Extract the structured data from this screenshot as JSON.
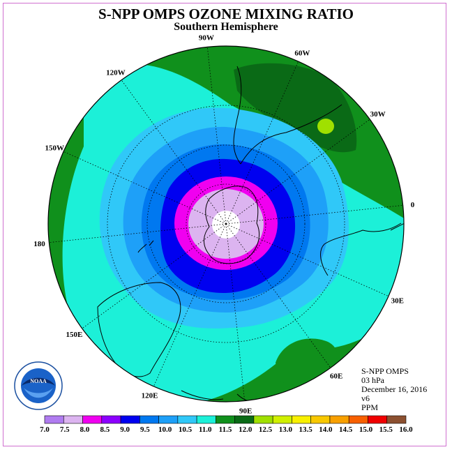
{
  "header": {
    "title": "S-NPP OMPS OZONE MIXING RATIO",
    "subtitle": "Southern Hemisphere"
  },
  "info": {
    "product": "S-NPP OMPS",
    "pressure": "03 hPa",
    "date": "December 16, 2016",
    "version": "v6",
    "units": "PPM"
  },
  "logo": {
    "text": "NOAA"
  },
  "longitude_labels": [
    "0",
    "30E",
    "60E",
    "90E",
    "120E",
    "150E",
    "180",
    "150W",
    "120W",
    "90W",
    "60W",
    "30W"
  ],
  "colorbar": {
    "labels": [
      "7.0",
      "7.5",
      "8.0",
      "8.5",
      "9.0",
      "9.5",
      "10.0",
      "10.5",
      "11.0",
      "11.5",
      "12.0",
      "12.5",
      "13.0",
      "13.5",
      "14.0",
      "14.5",
      "15.0",
      "15.5",
      "16.0"
    ],
    "colors": [
      "#b07cf0",
      "#dcb4f0",
      "#f000f0",
      "#8c00ff",
      "#0000f0",
      "#0078f0",
      "#1ea0f8",
      "#30c8f8",
      "#1cf0d8",
      "#10901c",
      "#0a6a16",
      "#a0e000",
      "#d0f000",
      "#f8f000",
      "#f8c800",
      "#f8a000",
      "#f86000",
      "#f00000",
      "#8c5030"
    ]
  },
  "map_colors": {
    "white_center": "#ffffff",
    "lavender": "#dcb4f0",
    "magenta": "#f000f0",
    "blue": "#0000f0",
    "medium_blue": "#0078f0",
    "sky_blue": "#1ea0f8",
    "light_sky": "#30c8f8",
    "aqua": "#1cf0d8",
    "green": "#10901c",
    "dark_green": "#0a6a16",
    "lime": "#a0e000"
  }
}
